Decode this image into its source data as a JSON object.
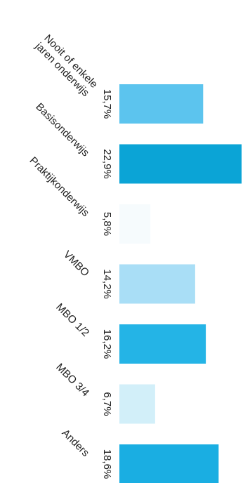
{
  "chart_data": {
    "type": "bar",
    "orientation": "horizontal",
    "title": "",
    "xlabel": "",
    "ylabel": "",
    "categories": [
      [
        "Nooit of enkele",
        "jaren onderwijs"
      ],
      [
        "Basisonderwijs"
      ],
      [
        "Praktijkonderwijs"
      ],
      [
        "VMBO"
      ],
      [
        "MBO 1/2"
      ],
      [
        "MBO 3/4"
      ],
      [
        "Anders"
      ]
    ],
    "values": [
      15.7,
      22.9,
      5.8,
      14.2,
      16.2,
      6.7,
      18.6
    ],
    "value_labels": [
      "15,7%",
      "22,9%",
      "5,8%",
      "14,2%",
      "16,2%",
      "6,7%",
      "18,6%"
    ],
    "colors": [
      "#5cc4ee",
      "#0ba4d6",
      "#f6fbfd",
      "#a9def6",
      "#24b4e6",
      "#d2eff9",
      "#1aaee2"
    ],
    "xlim": [
      0,
      22.9
    ],
    "grid": false,
    "legend": "none"
  }
}
